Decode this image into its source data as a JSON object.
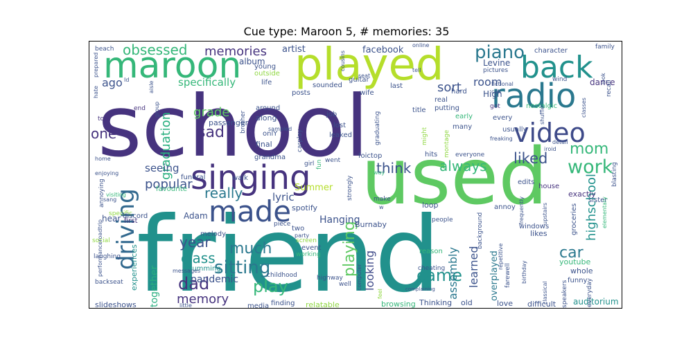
{
  "chart_data": {
    "type": "wordcloud",
    "title": "Cue type: Maroon 5, # memories: 35",
    "colors": {
      "dark": "#440154",
      "indigo": "#3b528b",
      "purple": "#46337e",
      "blue": "#31688e",
      "teal": "#21918c",
      "green": "#35b779",
      "lime": "#90d743",
      "yellow": "#c8e020",
      "tealgreen": "#29af7f",
      "darkteal": "#2a788e"
    },
    "words": [
      {
        "text": "friend",
        "weight": 100,
        "color": "#21918c"
      },
      {
        "text": "school",
        "weight": 92,
        "color": "#46337e"
      },
      {
        "text": "used",
        "weight": 88,
        "color": "#5ec962"
      },
      {
        "text": "played",
        "weight": 62,
        "color": "#b5de2b"
      },
      {
        "text": "maroon",
        "weight": 50,
        "color": "#35b779"
      },
      {
        "text": "singing",
        "weight": 47,
        "color": "#46337e"
      },
      {
        "text": "radio",
        "weight": 44,
        "color": "#2a788e"
      },
      {
        "text": "back",
        "weight": 40,
        "color": "#21918c"
      },
      {
        "text": "made",
        "weight": 38,
        "color": "#3b528b"
      },
      {
        "text": "video",
        "weight": 36,
        "color": "#3e4a89"
      },
      {
        "text": "driving",
        "weight": 32,
        "color": "#31688e"
      },
      {
        "text": "work",
        "weight": 24,
        "color": "#35b779"
      },
      {
        "text": "piano",
        "weight": 22,
        "color": "#2a788e"
      },
      {
        "text": "sitting",
        "weight": 22,
        "color": "#2a788e"
      },
      {
        "text": "playing",
        "weight": 22,
        "color": "#5ec962"
      },
      {
        "text": "obsessed",
        "weight": 18,
        "color": "#35b779"
      },
      {
        "text": "memories",
        "weight": 18,
        "color": "#46337e"
      },
      {
        "text": "graduation",
        "weight": 18,
        "color": "#29af7f"
      },
      {
        "text": "sad",
        "weight": 20,
        "color": "#46337e"
      },
      {
        "text": "liked",
        "weight": 20,
        "color": "#3b528b"
      },
      {
        "text": "mom",
        "weight": 20,
        "color": "#35b779"
      },
      {
        "text": "think",
        "weight": 19,
        "color": "#3b528b"
      },
      {
        "text": "always",
        "weight": 19,
        "color": "#35b779"
      },
      {
        "text": "really",
        "weight": 18,
        "color": "#2a788e"
      },
      {
        "text": "much",
        "weight": 20,
        "color": "#2a788e"
      },
      {
        "text": "play",
        "weight": 20,
        "color": "#35b779"
      },
      {
        "text": "dad",
        "weight": 20,
        "color": "#46337e"
      },
      {
        "text": "came",
        "weight": 20,
        "color": "#21918c"
      },
      {
        "text": "car",
        "weight": 20,
        "color": "#2a788e"
      },
      {
        "text": "highschool",
        "weight": 18,
        "color": "#21918c"
      },
      {
        "text": "year",
        "weight": 18,
        "color": "#3b528b"
      },
      {
        "text": "class",
        "weight": 17,
        "color": "#21918c"
      },
      {
        "text": "learned",
        "weight": 16,
        "color": "#3b528b"
      },
      {
        "text": "assembly",
        "weight": 16,
        "color": "#2a788e"
      },
      {
        "text": "memory",
        "weight": 15,
        "color": "#46337e"
      },
      {
        "text": "looking",
        "weight": 15,
        "color": "#3e4a89"
      },
      {
        "text": "together",
        "weight": 14,
        "color": "#29af7f"
      },
      {
        "text": "popular",
        "weight": 14,
        "color": "#3b528b"
      },
      {
        "text": "grade",
        "weight": 14,
        "color": "#5ec962"
      },
      {
        "text": "room",
        "weight": 14,
        "color": "#3b528b"
      },
      {
        "text": "sort",
        "weight": 14,
        "color": "#3b528b"
      },
      {
        "text": "ago",
        "weight": 14,
        "color": "#3b528b"
      },
      {
        "text": "one",
        "weight": 15,
        "color": "#46337e"
      },
      {
        "text": "specifically",
        "weight": 13,
        "color": "#35b779"
      },
      {
        "text": "seeing",
        "weight": 12,
        "color": "#3b528b"
      },
      {
        "text": "pandemic",
        "weight": 12,
        "color": "#3b528b"
      },
      {
        "text": "experiences",
        "weight": 8,
        "color": "#21918c"
      },
      {
        "text": "overplayed",
        "weight": 11,
        "color": "#2a788e"
      },
      {
        "text": "Hanging",
        "weight": 12,
        "color": "#3b528b"
      },
      {
        "text": "lyric",
        "weight": 12,
        "color": "#3b528b"
      },
      {
        "text": "Summer",
        "weight": 11,
        "color": "#b5de2b"
      },
      {
        "text": "Levine",
        "weight": 11,
        "color": "#3b528b"
      },
      {
        "text": "artist",
        "weight": 11,
        "color": "#3b528b"
      },
      {
        "text": "facebook",
        "weight": 11,
        "color": "#3b528b"
      },
      {
        "text": "album",
        "weight": 10,
        "color": "#3b528b"
      },
      {
        "text": "dance",
        "weight": 10,
        "color": "#46337e"
      },
      {
        "text": "High",
        "weight": 10,
        "color": "#3b528b"
      },
      {
        "text": "exactly",
        "weight": 9,
        "color": "#46337e"
      },
      {
        "text": "Adam",
        "weight": 10,
        "color": "#3b528b"
      },
      {
        "text": "hear",
        "weight": 10,
        "color": "#3b528b"
      },
      {
        "text": "auditorium",
        "weight": 10,
        "color": "#21918c"
      },
      {
        "text": "difficult",
        "weight": 9,
        "color": "#3b528b"
      },
      {
        "text": "love",
        "weight": 9,
        "color": "#3b528b"
      },
      {
        "text": "Thinking",
        "weight": 9,
        "color": "#3b528b"
      },
      {
        "text": "old",
        "weight": 9,
        "color": "#3b528b"
      },
      {
        "text": "browsing",
        "weight": 9,
        "color": "#35b779"
      },
      {
        "text": "relatable",
        "weight": 8,
        "color": "#90d743"
      },
      {
        "text": "finding",
        "weight": 8,
        "color": "#3b528b"
      },
      {
        "text": "media",
        "weight": 8,
        "color": "#3b528b"
      },
      {
        "text": "slideshows",
        "weight": 9,
        "color": "#3b528b"
      },
      {
        "text": "Burnaby",
        "weight": 8,
        "color": "#3b528b"
      },
      {
        "text": "two",
        "weight": 8,
        "color": "#3b528b"
      },
      {
        "text": "melody",
        "weight": 8,
        "color": "#3b528b"
      },
      {
        "text": "humming",
        "weight": 8,
        "color": "#21918c"
      },
      {
        "text": "event",
        "weight": 8,
        "color": "#3b528b"
      },
      {
        "text": "windows",
        "weight": 8,
        "color": "#3b528b"
      },
      {
        "text": "likes",
        "weight": 8,
        "color": "#3b528b"
      },
      {
        "text": "youtube",
        "weight": 8,
        "color": "#35b779"
      },
      {
        "text": "whole",
        "weight": 8,
        "color": "#3b528b"
      },
      {
        "text": "funny",
        "weight": 7,
        "color": "#3b528b"
      },
      {
        "text": "loop",
        "weight": 8,
        "color": "#3b528b"
      },
      {
        "text": "annoy",
        "weight": 8,
        "color": "#3b528b"
      },
      {
        "text": "sister",
        "weight": 8,
        "color": "#3b528b"
      },
      {
        "text": "house",
        "weight": 7,
        "color": "#46337e"
      },
      {
        "text": "edits",
        "weight": 7,
        "color": "#3b528b"
      },
      {
        "text": "groceries",
        "weight": 8,
        "color": "#3b528b"
      },
      {
        "text": "funeral",
        "weight": 8,
        "color": "#3b528b"
      },
      {
        "text": "walk",
        "weight": 8,
        "color": "#3b528b"
      },
      {
        "text": "grandma",
        "weight": 8,
        "color": "#3b528b"
      },
      {
        "text": "went",
        "weight": 7,
        "color": "#3b528b"
      },
      {
        "text": "girl",
        "weight": 7,
        "color": "#3b528b"
      },
      {
        "text": "foictop",
        "weight": 8,
        "color": "#3b528b"
      },
      {
        "text": "hits",
        "weight": 7,
        "color": "#3b528b"
      },
      {
        "text": "everyone",
        "weight": 6,
        "color": "#3b528b"
      },
      {
        "text": "spotify",
        "weight": 7,
        "color": "#3b528b"
      },
      {
        "text": "piece",
        "weight": 7,
        "color": "#3b528b"
      },
      {
        "text": "final",
        "weight": 8,
        "color": "#3b528b"
      },
      {
        "text": "passenger",
        "weight": 8,
        "color": "#3b528b"
      },
      {
        "text": "along",
        "weight": 8,
        "color": "#3b528b"
      },
      {
        "text": "around",
        "weight": 7,
        "color": "#3b528b"
      },
      {
        "text": "job",
        "weight": 7,
        "color": "#3b528b"
      },
      {
        "text": "lost",
        "weight": 7,
        "color": "#3b528b"
      },
      {
        "text": "leaked",
        "weight": 7,
        "color": "#3b528b"
      },
      {
        "text": "wife",
        "weight": 7,
        "color": "#3b528b"
      },
      {
        "text": "posts",
        "weight": 7,
        "color": "#3b528b"
      },
      {
        "text": "sounded",
        "weight": 7,
        "color": "#3b528b"
      },
      {
        "text": "guitar",
        "weight": 7,
        "color": "#3b528b"
      },
      {
        "text": "last",
        "weight": 7,
        "color": "#3b528b"
      },
      {
        "text": "hard",
        "weight": 7,
        "color": "#3b528b"
      },
      {
        "text": "real",
        "weight": 7,
        "color": "#3b528b"
      },
      {
        "text": "putting",
        "weight": 7,
        "color": "#3b528b"
      },
      {
        "text": "title",
        "weight": 7,
        "color": "#3b528b"
      },
      {
        "text": "early",
        "weight": 7,
        "color": "#35b779"
      },
      {
        "text": "many",
        "weight": 7,
        "color": "#3b528b"
      },
      {
        "text": "every",
        "weight": 7,
        "color": "#3b528b"
      },
      {
        "text": "usually",
        "weight": 7,
        "color": "#3b528b"
      },
      {
        "text": "nostalgic",
        "weight": 7,
        "color": "#35b779"
      },
      {
        "text": "got",
        "weight": 7,
        "color": "#46337e"
      },
      {
        "text": "end",
        "weight": 7,
        "color": "#46337e"
      },
      {
        "text": "top",
        "weight": 7,
        "color": "#46337e"
      },
      {
        "text": "young",
        "weight": 7,
        "color": "#3b528b"
      },
      {
        "text": "outside",
        "weight": 7,
        "color": "#90d743"
      },
      {
        "text": "life",
        "weight": 7,
        "color": "#3b528b"
      },
      {
        "text": "beach",
        "weight": 6,
        "color": "#3b528b"
      },
      {
        "text": "character",
        "weight": 6,
        "color": "#3b528b"
      },
      {
        "text": "family",
        "weight": 6,
        "color": "#3b528b"
      },
      {
        "text": "pictures",
        "weight": 6,
        "color": "#3b528b"
      },
      {
        "text": "online",
        "weight": 6,
        "color": "#3b528b"
      },
      {
        "text": "tell",
        "weight": 6,
        "color": "#3b528b"
      },
      {
        "text": "wind",
        "weight": 6,
        "color": "#3b528b"
      },
      {
        "text": "fictional",
        "weight": 6,
        "color": "#3b528b"
      },
      {
        "text": "call",
        "weight": 6,
        "color": "#3b528b"
      },
      {
        "text": "freaking",
        "weight": 6,
        "color": "#3b528b"
      },
      {
        "text": "detail",
        "weight": 6,
        "color": "#3b528b"
      },
      {
        "text": "annoying",
        "weight": 6,
        "color": "#3b528b"
      },
      {
        "text": "home",
        "weight": 6,
        "color": "#3b528b"
      },
      {
        "text": "enjoying",
        "weight": 6,
        "color": "#3b528b"
      },
      {
        "text": "favourite",
        "weight": 6,
        "color": "#35b779"
      },
      {
        "text": "visiting",
        "weight": 6,
        "color": "#35b779"
      },
      {
        "text": "sang",
        "weight": 6,
        "color": "#3b528b"
      },
      {
        "text": "specific",
        "weight": 6,
        "color": "#90d743"
      },
      {
        "text": "discord",
        "weight": 6,
        "color": "#3b528b"
      },
      {
        "text": "first",
        "weight": 6,
        "color": "#46337e"
      },
      {
        "text": "social",
        "weight": 6,
        "color": "#90d743"
      },
      {
        "text": "laughing",
        "weight": 6,
        "color": "#3b528b"
      },
      {
        "text": "backseat",
        "weight": 6,
        "color": "#3b528b"
      },
      {
        "text": "little",
        "weight": 6,
        "color": "#3b528b"
      },
      {
        "text": "messages",
        "weight": 6,
        "color": "#3b528b"
      },
      {
        "text": "childhood",
        "weight": 6,
        "color": "#3b528b"
      },
      {
        "text": "working",
        "weight": 6,
        "color": "#35b779"
      },
      {
        "text": "screen",
        "weight": 6,
        "color": "#90d743"
      },
      {
        "text": "party",
        "weight": 6,
        "color": "#3b528b"
      },
      {
        "text": "highway",
        "weight": 6,
        "color": "#3b528b"
      },
      {
        "text": "well",
        "weight": 6,
        "color": "#3b528b"
      },
      {
        "text": "cheating",
        "weight": 6,
        "color": "#3b528b"
      },
      {
        "text": "reason",
        "weight": 6,
        "color": "#35b779"
      },
      {
        "text": "complaining",
        "weight": 5,
        "color": "#3b528b"
      },
      {
        "text": "people",
        "weight": 6,
        "color": "#3b528b"
      },
      {
        "text": "make",
        "weight": 6,
        "color": "#3b528b"
      },
      {
        "text": "way",
        "weight": 6,
        "color": "#35b779"
      },
      {
        "text": "onlY",
        "weight": 6,
        "color": "#3b528b"
      },
      {
        "text": "sampled",
        "weight": 6,
        "color": "#3b528b"
      },
      {
        "text": "prepared",
        "weight": 6,
        "color": "#3b528b"
      },
      {
        "text": "hate",
        "weight": 6,
        "color": "#3b528b"
      },
      {
        "text": "Id",
        "weight": 6,
        "color": "#3b528b"
      },
      {
        "text": "aisle",
        "weight": 6,
        "color": "#3b528b"
      },
      {
        "text": "group",
        "weight": 6,
        "color": "#3b528b"
      },
      {
        "text": "brother",
        "weight": 6,
        "color": "#3b528b"
      },
      {
        "text": "performanceroadtrip",
        "weight": 6,
        "color": "#3b528b"
      },
      {
        "text": "fun",
        "weight": 6,
        "color": "#35b779"
      },
      {
        "text": "carplay",
        "weight": 6,
        "color": "#3b528b"
      },
      {
        "text": "strongly",
        "weight": 6,
        "color": "#3b528b"
      },
      {
        "text": "graduating",
        "weight": 6,
        "color": "#3b528b"
      },
      {
        "text": "cousins",
        "weight": 6,
        "color": "#3b528b"
      },
      {
        "text": "seat",
        "weight": 6,
        "color": "#3b528b"
      },
      {
        "text": "w",
        "weight": 6,
        "color": "#3b528b"
      },
      {
        "text": "might",
        "weight": 6,
        "color": "#90d743"
      },
      {
        "text": "montage",
        "weight": 6,
        "color": "#90d743"
      },
      {
        "text": "background",
        "weight": 6,
        "color": "#3b528b"
      },
      {
        "text": "repetitive",
        "weight": 6,
        "color": "#3b528b"
      },
      {
        "text": "farewell",
        "weight": 6,
        "color": "#3b528b"
      },
      {
        "text": "birthday",
        "weight": 6,
        "color": "#3b528b"
      },
      {
        "text": "frequently",
        "weight": 6,
        "color": "#3b528b"
      },
      {
        "text": "classical",
        "weight": 6,
        "color": "#3b528b"
      },
      {
        "text": "upstairs",
        "weight": 6,
        "color": "#3b528b"
      },
      {
        "text": "speakers",
        "weight": 6,
        "color": "#3b528b"
      },
      {
        "text": "everyday",
        "weight": 6,
        "color": "#3b528b"
      },
      {
        "text": "elementary",
        "weight": 6,
        "color": "#35b779"
      },
      {
        "text": "blasting",
        "weight": 6,
        "color": "#3b528b"
      },
      {
        "text": "iroid",
        "weight": 6,
        "color": "#3b528b"
      },
      {
        "text": "shuffle",
        "weight": 6,
        "color": "#3b528b"
      },
      {
        "text": "classes",
        "weight": 6,
        "color": "#3b528b"
      },
      {
        "text": "look",
        "weight": 6,
        "color": "#3b528b"
      },
      {
        "text": "recall",
        "weight": 6,
        "color": "#3b528b"
      },
      {
        "text": "feel",
        "weight": 6,
        "color": "#90d743"
      },
      {
        "text": "computer",
        "weight": 6,
        "color": "#3b528b"
      }
    ]
  }
}
